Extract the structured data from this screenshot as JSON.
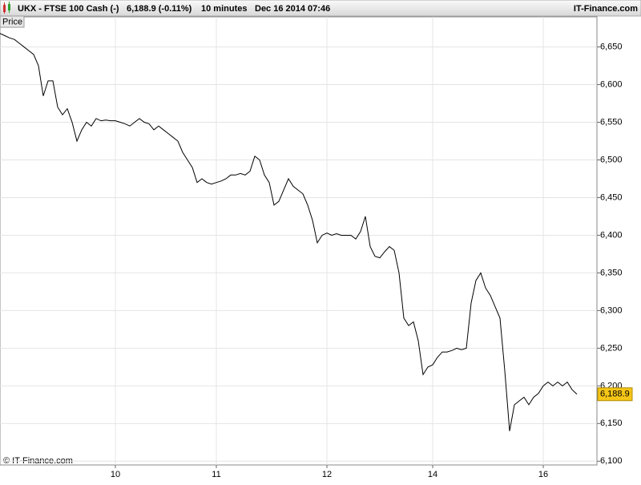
{
  "header": {
    "symbol": "UKX - FTSE 100 Cash (-)",
    "quote": "6,188.9 (-0.11%)",
    "interval": "10 minutes",
    "timestamp": "Dec 16 2014 07:46",
    "brand": "IT-Finance.com"
  },
  "chart_data": {
    "type": "line",
    "pane_label": "Price",
    "copyright": "© IT-Finance.com",
    "categories": [
      null,
      null,
      null,
      null,
      null,
      null,
      null,
      null,
      null,
      null,
      null,
      null,
      null,
      null,
      null,
      null,
      null,
      null,
      null,
      null,
      null,
      null,
      null,
      null,
      "10",
      null,
      null,
      null,
      null,
      null,
      null,
      null,
      null,
      null,
      null,
      null,
      null,
      null,
      null,
      null,
      null,
      null,
      null,
      null,
      null,
      "11",
      null,
      null,
      null,
      null,
      null,
      null,
      null,
      null,
      null,
      null,
      null,
      null,
      null,
      null,
      null,
      null,
      null,
      null,
      null,
      null,
      null,
      null,
      "12",
      null,
      null,
      null,
      null,
      null,
      null,
      null,
      null,
      null,
      null,
      null,
      null,
      null,
      null,
      null,
      null,
      null,
      null,
      null,
      null,
      null,
      "14",
      null,
      null,
      null,
      null,
      null,
      null,
      null,
      null,
      null,
      null,
      null,
      null,
      null,
      null,
      null,
      null,
      null,
      null,
      null,
      null,
      null,
      null,
      "16",
      null,
      null,
      null,
      null,
      null,
      null,
      null
    ],
    "series": [
      {
        "name": "UKX",
        "color": "#000000",
        "values": [
          6668,
          6665,
          6662,
          6660,
          6655,
          6650,
          6645,
          6640,
          6625,
          6585,
          6605,
          6605,
          6570,
          6560,
          6568,
          6550,
          6525,
          6540,
          6550,
          6545,
          6555,
          6552,
          6553,
          6552,
          6552,
          6550,
          6548,
          6545,
          6550,
          6555,
          6550,
          6548,
          6540,
          6545,
          6540,
          6535,
          6530,
          6525,
          6510,
          6500,
          6490,
          6470,
          6475,
          6470,
          6468,
          6470,
          6472,
          6475,
          6480,
          6480,
          6482,
          6480,
          6485,
          6505,
          6500,
          6480,
          6470,
          6440,
          6445,
          6460,
          6475,
          6465,
          6460,
          6455,
          6440,
          6420,
          6390,
          6400,
          6403,
          6400,
          6402,
          6400,
          6400,
          6400,
          6395,
          6405,
          6425,
          6385,
          6372,
          6370,
          6378,
          6385,
          6380,
          6350,
          6290,
          6280,
          6285,
          6260,
          6215,
          6225,
          6228,
          6238,
          6245,
          6245,
          6247,
          6250,
          6248,
          6250,
          6310,
          6340,
          6350,
          6330,
          6320,
          6305,
          6290,
          6220,
          6140,
          6175,
          6180,
          6185,
          6175,
          6185,
          6190,
          6200,
          6205,
          6200,
          6205,
          6200,
          6205,
          6195,
          6188.9
        ],
        "value_labels": [
          null,
          null,
          null,
          null,
          null,
          null,
          null,
          null,
          null,
          null,
          null,
          null,
          null,
          null,
          null,
          null,
          null,
          null,
          null,
          null,
          null,
          null,
          null,
          null,
          null,
          null,
          null,
          null,
          null,
          null,
          null,
          null,
          null,
          null,
          null,
          null,
          null,
          null,
          null,
          null,
          null,
          null,
          null,
          null,
          null,
          null,
          null,
          null,
          null,
          null,
          null,
          null,
          null,
          null,
          null,
          null,
          null,
          null,
          null,
          null,
          null,
          null,
          null,
          null,
          null,
          null,
          null,
          null,
          null,
          null,
          null,
          null,
          null,
          null,
          null,
          null,
          null,
          null,
          null,
          null,
          null,
          null,
          null,
          null,
          null,
          null,
          null,
          null,
          null,
          null,
          null,
          null,
          null,
          null,
          null,
          null,
          null,
          null,
          null,
          null,
          null,
          null,
          null,
          null,
          null,
          null,
          null,
          null,
          null,
          null,
          null,
          null,
          null,
          null,
          null,
          null,
          null,
          null,
          null,
          null,
          "6,188.9"
        ]
      }
    ],
    "ylim": [
      6095,
      6690
    ],
    "yticks": [
      {
        "value": 6100,
        "label": "6,100"
      },
      {
        "value": 6150,
        "label": "6,150"
      },
      {
        "value": 6200,
        "label": "6,200"
      },
      {
        "value": 6250,
        "label": "6,250"
      },
      {
        "value": 6300,
        "label": "6,300"
      },
      {
        "value": 6350,
        "label": "6,350"
      },
      {
        "value": 6400,
        "label": "6,400"
      },
      {
        "value": 6450,
        "label": "6,450"
      },
      {
        "value": 6500,
        "label": "6,500"
      },
      {
        "value": 6550,
        "label": "6,550"
      },
      {
        "value": 6600,
        "label": "6,600"
      },
      {
        "value": 6650,
        "label": "6,650"
      }
    ],
    "grid": true,
    "label_color": "#f5c518"
  }
}
